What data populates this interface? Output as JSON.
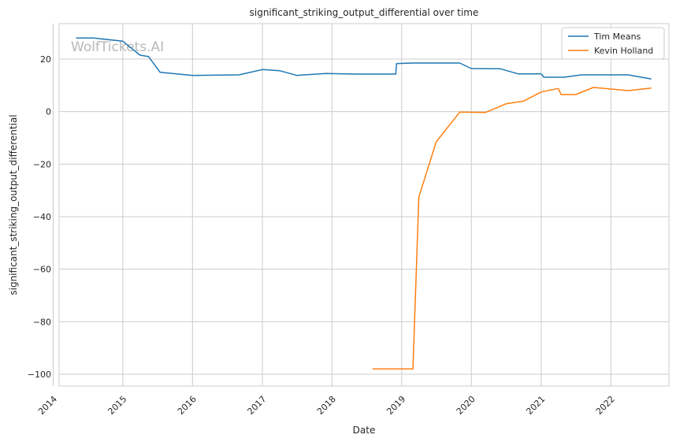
{
  "watermark": "WolfTickets.AI",
  "chart_data": {
    "type": "line",
    "title": "significant_striking_output_differential over time",
    "xlabel": "Date",
    "ylabel": "significant_striking_output_differential",
    "x_ticks": [
      "2014",
      "2015",
      "2016",
      "2017",
      "2018",
      "2019",
      "2020",
      "2021",
      "2022"
    ],
    "y_ticks": [
      20,
      0,
      -20,
      -40,
      -60,
      -80,
      -100
    ],
    "xlim": [
      "2014-02-01",
      "2022-11-01"
    ],
    "ylim": [
      -104.5,
      33.5
    ],
    "grid": true,
    "legend_position": "top-right",
    "series": [
      {
        "name": "Tim Means",
        "color": "#1f77b4",
        "points": [
          [
            "2014-05-01",
            28.0
          ],
          [
            "2014-08-01",
            28.0
          ],
          [
            "2015-01-01",
            26.8
          ],
          [
            "2015-04-01",
            21.5
          ],
          [
            "2015-05-15",
            21.0
          ],
          [
            "2015-07-15",
            15.0
          ],
          [
            "2016-01-01",
            13.8
          ],
          [
            "2016-09-01",
            14.0
          ],
          [
            "2017-01-01",
            16.0
          ],
          [
            "2017-04-01",
            15.6
          ],
          [
            "2017-07-01",
            13.8
          ],
          [
            "2017-12-01",
            14.5
          ],
          [
            "2018-05-01",
            14.3
          ],
          [
            "2018-12-01",
            14.3
          ],
          [
            "2018-12-05",
            18.3
          ],
          [
            "2019-03-01",
            18.5
          ],
          [
            "2019-11-01",
            18.5
          ],
          [
            "2020-01-01",
            16.4
          ],
          [
            "2020-06-01",
            16.3
          ],
          [
            "2020-09-01",
            14.4
          ],
          [
            "2021-01-01",
            14.4
          ],
          [
            "2021-01-15",
            13.1
          ],
          [
            "2021-05-01",
            13.1
          ],
          [
            "2021-08-01",
            14.0
          ],
          [
            "2022-04-01",
            14.0
          ],
          [
            "2022-08-01",
            12.4
          ]
        ]
      },
      {
        "name": "Kevin Holland",
        "color": "#ff7f0e",
        "points": [
          [
            "2018-08-01",
            -98.0
          ],
          [
            "2019-03-01",
            -98.0
          ],
          [
            "2019-04-01",
            -32.5
          ],
          [
            "2019-07-01",
            -11.5
          ],
          [
            "2019-11-01",
            -0.2
          ],
          [
            "2020-03-15",
            -0.3
          ],
          [
            "2020-07-01",
            3.0
          ],
          [
            "2020-10-01",
            4.0
          ],
          [
            "2021-01-01",
            7.5
          ],
          [
            "2021-04-01",
            8.8
          ],
          [
            "2021-04-15",
            6.5
          ],
          [
            "2021-07-01",
            6.5
          ],
          [
            "2021-10-01",
            9.2
          ],
          [
            "2022-01-01",
            8.6
          ],
          [
            "2022-04-01",
            8.0
          ],
          [
            "2022-08-01",
            9.0
          ]
        ]
      }
    ]
  }
}
